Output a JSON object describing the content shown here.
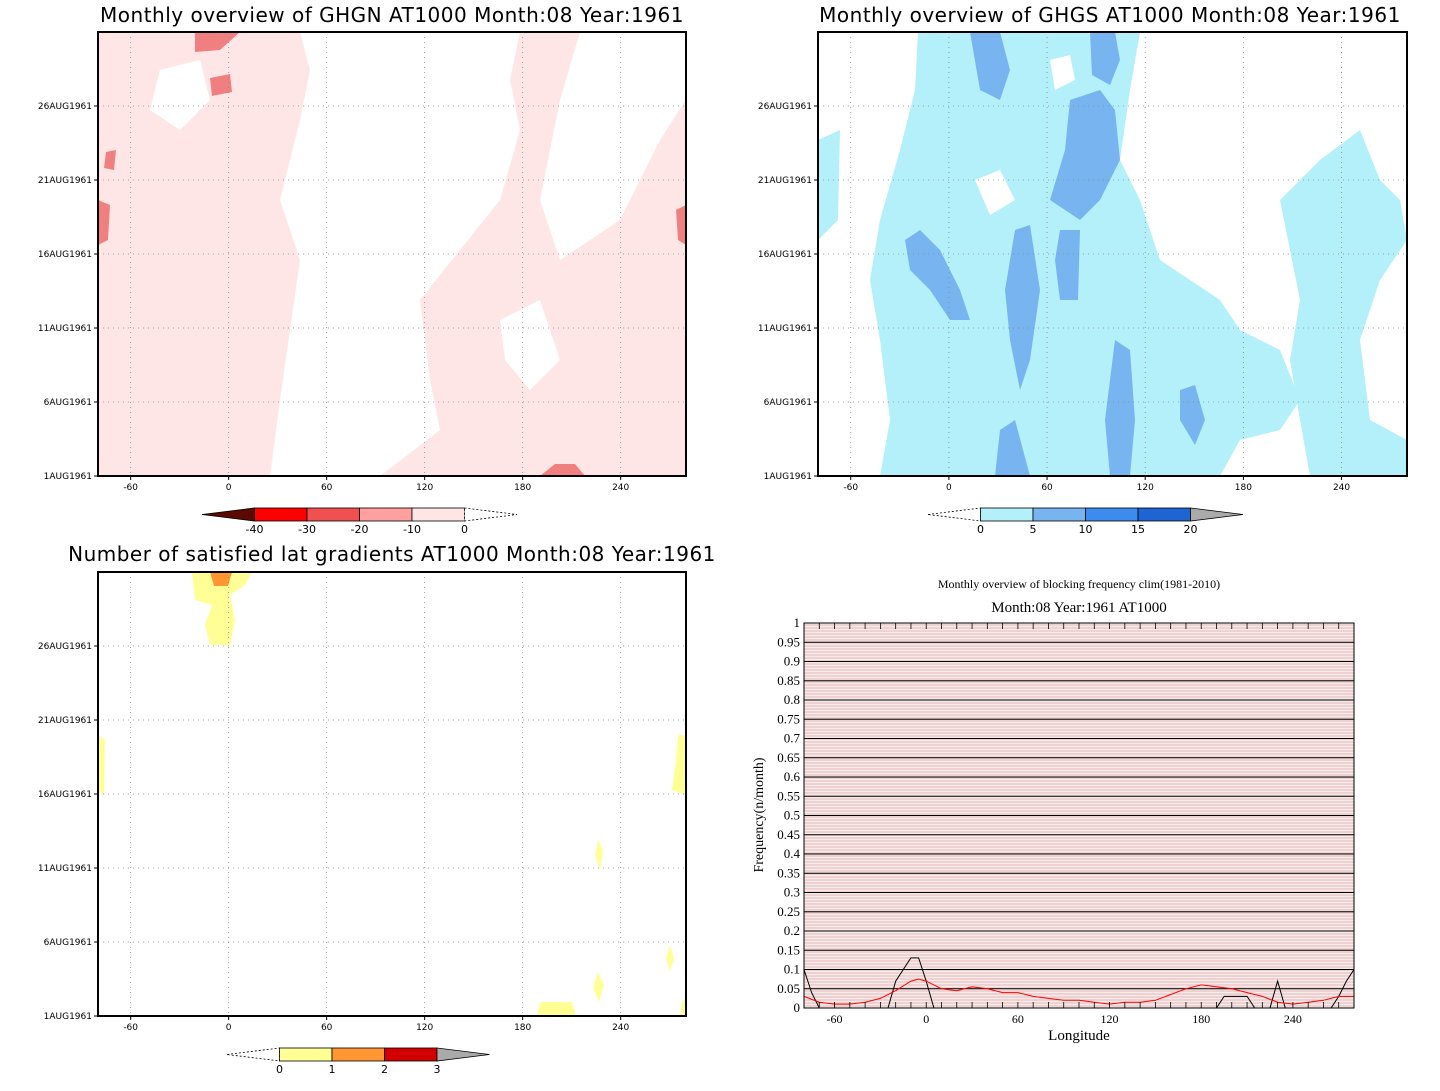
{
  "chart_data": [
    {
      "type": "heatmap",
      "title": "Monthly overview of GHGN AT1000 Month:08 Year:1961",
      "x_ticks": [
        "-60",
        "0",
        "60",
        "120",
        "180",
        "240"
      ],
      "x_tick_values": [
        -60,
        0,
        60,
        120,
        180,
        240
      ],
      "xlim": [
        -80,
        280
      ],
      "y_ticks": [
        "1AUG1961",
        "6AUG1961",
        "11AUG1961",
        "16AUG1961",
        "21AUG1961",
        "26AUG1961"
      ],
      "y_tick_values": [
        1,
        6,
        11,
        16,
        21,
        26
      ],
      "ylim": [
        1,
        31
      ],
      "colorbar": {
        "labels": [
          "-40",
          "-30",
          "-20",
          "-10",
          "0"
        ],
        "colors": [
          "#5a0a00",
          "#ff0000",
          "#f05050",
          "#ffa0a0",
          "#ffe6e6",
          "#ffffff"
        ]
      },
      "grid": true
    },
    {
      "type": "heatmap",
      "title": "Monthly overview of GHGS AT1000 Month:08 Year:1961",
      "x_ticks": [
        "-60",
        "0",
        "60",
        "120",
        "180",
        "240"
      ],
      "x_tick_values": [
        -60,
        0,
        60,
        120,
        180,
        240
      ],
      "xlim": [
        -80,
        280
      ],
      "y_ticks": [
        "1AUG1961",
        "6AUG1961",
        "11AUG1961",
        "16AUG1961",
        "21AUG1961",
        "26AUG1961"
      ],
      "y_tick_values": [
        1,
        6,
        11,
        16,
        21,
        26
      ],
      "ylim": [
        1,
        31
      ],
      "colorbar": {
        "labels": [
          "0",
          "5",
          "10",
          "15",
          "20"
        ],
        "colors": [
          "#ffffff",
          "#b4f0fa",
          "#78b4f0",
          "#3c8cf0",
          "#1e64d2",
          "#aaaaaa"
        ]
      },
      "grid": true
    },
    {
      "type": "heatmap",
      "title": "Number of satisfied lat gradients AT1000 Month:08 Year:1961",
      "x_ticks": [
        "-60",
        "0",
        "60",
        "120",
        "180",
        "240"
      ],
      "x_tick_values": [
        -60,
        0,
        60,
        120,
        180,
        240
      ],
      "xlim": [
        -80,
        280
      ],
      "y_ticks": [
        "1AUG1961",
        "6AUG1961",
        "11AUG1961",
        "16AUG1961",
        "21AUG1961",
        "26AUG1961"
      ],
      "y_tick_values": [
        1,
        6,
        11,
        16,
        21,
        26
      ],
      "ylim": [
        1,
        31
      ],
      "colorbar": {
        "labels": [
          "0",
          "1",
          "2",
          "3"
        ],
        "colors": [
          "#ffffff",
          "#ffff96",
          "#ff9632",
          "#d20000",
          "#aaaaaa"
        ]
      },
      "grid": true
    },
    {
      "type": "line",
      "title": "Monthly overview of blocking frequency clim(1981-2010)",
      "subtitle": "Month:08 Year:1961  AT1000",
      "xlabel": "Longitude",
      "ylabel": "Frequency(n/month)",
      "xlim": [
        -80,
        280
      ],
      "ylim": [
        0,
        1
      ],
      "x_ticks": [
        "-60",
        "0",
        "60",
        "120",
        "180",
        "240"
      ],
      "x_tick_values": [
        -60,
        0,
        60,
        120,
        180,
        240
      ],
      "y_ticks": [
        "0",
        "0.05",
        "0.1",
        "0.15",
        "0.2",
        "0.25",
        "0.3",
        "0.35",
        "0.4",
        "0.45",
        "0.5",
        "0.55",
        "0.6",
        "0.65",
        "0.7",
        "0.75",
        "0.8",
        "0.85",
        "0.9",
        "0.95",
        "1"
      ],
      "series": [
        {
          "color": "#000000",
          "x": [
            -80,
            -75,
            -70,
            -60,
            -40,
            -30,
            -25,
            -20,
            -15,
            -10,
            -5,
            0,
            5,
            10,
            20,
            40,
            60,
            80,
            100,
            120,
            140,
            160,
            180,
            185,
            190,
            195,
            200,
            205,
            210,
            215,
            220,
            225,
            230,
            235,
            240,
            250,
            260,
            265,
            270,
            275,
            280
          ],
          "y": [
            0.1,
            0.04,
            0.0,
            0.0,
            0.0,
            0.0,
            0.0,
            0.07,
            0.1,
            0.13,
            0.13,
            0.07,
            0.0,
            0.0,
            0.0,
            0.0,
            0.0,
            0.0,
            0.0,
            0.0,
            0.0,
            0.0,
            0.0,
            0.0,
            0.0,
            0.03,
            0.03,
            0.03,
            0.03,
            0.0,
            0.0,
            0.0,
            0.07,
            0.0,
            0.0,
            0.0,
            0.0,
            0.0,
            0.03,
            0.07,
            0.1
          ]
        },
        {
          "color": "#ff0000",
          "x": [
            -80,
            -70,
            -60,
            -50,
            -40,
            -30,
            -20,
            -10,
            -5,
            0,
            10,
            20,
            30,
            40,
            50,
            60,
            70,
            80,
            90,
            100,
            110,
            120,
            130,
            140,
            150,
            160,
            170,
            180,
            190,
            200,
            210,
            220,
            230,
            240,
            250,
            260,
            270,
            280
          ],
          "y": [
            0.03,
            0.015,
            0.01,
            0.01,
            0.015,
            0.025,
            0.045,
            0.07,
            0.075,
            0.07,
            0.05,
            0.045,
            0.055,
            0.05,
            0.04,
            0.04,
            0.03,
            0.025,
            0.02,
            0.02,
            0.015,
            0.01,
            0.015,
            0.015,
            0.02,
            0.035,
            0.05,
            0.06,
            0.055,
            0.05,
            0.04,
            0.03,
            0.015,
            0.01,
            0.015,
            0.02,
            0.03,
            0.03
          ]
        }
      ],
      "grid": true
    }
  ]
}
